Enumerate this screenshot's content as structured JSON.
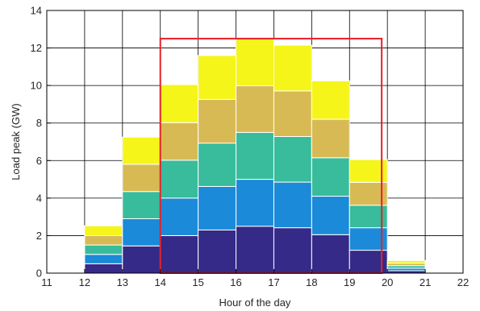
{
  "chart_data": {
    "type": "bar",
    "stacked": true,
    "title": "",
    "xlabel": "Hour of the day",
    "ylabel": "Load peak (GW)",
    "xlim": [
      11,
      22
    ],
    "ylim": [
      0,
      14
    ],
    "xticks": [
      11,
      12,
      13,
      14,
      15,
      16,
      17,
      18,
      19,
      20,
      21,
      22
    ],
    "yticks": [
      0,
      2,
      4,
      6,
      8,
      10,
      12,
      14
    ],
    "grid": true,
    "bar_starts": [
      12,
      13,
      14,
      15,
      16,
      17,
      18,
      19,
      20
    ],
    "bar_width": 1,
    "series_colors": [
      "#352a87",
      "#1b8ad8",
      "#38bc9b",
      "#d8ba55",
      "#f5f51a"
    ],
    "series": [
      {
        "values": [
          0.5,
          1.45,
          2.0,
          2.3,
          2.5,
          2.42,
          2.05,
          1.22,
          0.13
        ]
      },
      {
        "values": [
          0.5,
          1.45,
          2.0,
          2.32,
          2.5,
          2.43,
          2.05,
          1.2,
          0.13
        ]
      },
      {
        "values": [
          0.5,
          1.45,
          2.02,
          2.31,
          2.5,
          2.43,
          2.05,
          1.2,
          0.14
        ]
      },
      {
        "values": [
          0.5,
          1.45,
          2.0,
          2.33,
          2.49,
          2.43,
          2.05,
          1.22,
          0.13
        ]
      },
      {
        "values": [
          0.52,
          1.45,
          2.03,
          2.34,
          2.51,
          2.44,
          2.05,
          1.21,
          0.14
        ]
      }
    ],
    "highlight": {
      "x_from": 14,
      "x_to": 19.85,
      "y_top": 12.5,
      "color": "#e8202a"
    }
  }
}
